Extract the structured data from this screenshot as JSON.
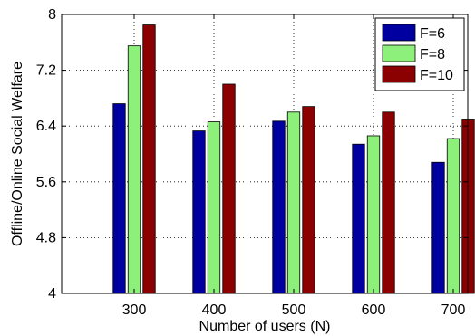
{
  "chart_data": {
    "type": "bar",
    "title": "",
    "xlabel": "Number of users (N)",
    "ylabel": "Offline/Online Social Welfare",
    "categories": [
      "300",
      "400",
      "500",
      "600",
      "700"
    ],
    "ylim": [
      4,
      8
    ],
    "yticks": [
      "4",
      "4.8",
      "5.6",
      "6.4",
      "7.2",
      "8"
    ],
    "grid": true,
    "legend_position": "top-right",
    "series": [
      {
        "name": "F=6",
        "color": "#0000a0",
        "values": [
          6.72,
          6.33,
          6.47,
          6.14,
          5.88
        ]
      },
      {
        "name": "F=8",
        "color": "#8cf07a",
        "values": [
          7.55,
          6.46,
          6.6,
          6.26,
          6.22
        ]
      },
      {
        "name": "F=10",
        "color": "#8b0000",
        "values": [
          7.85,
          7.0,
          6.68,
          6.6,
          6.5
        ]
      }
    ]
  }
}
